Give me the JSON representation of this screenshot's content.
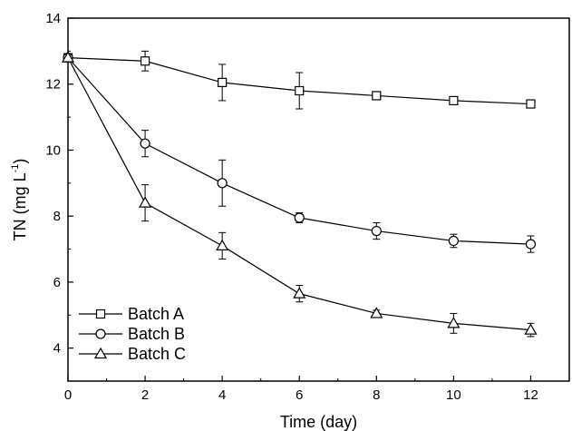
{
  "chart_data": {
    "type": "line",
    "xlabel": "Time (day)",
    "ylabel": {
      "main": "TN (mg L",
      "sup": "-1",
      "close": ")"
    },
    "xlim": [
      0,
      13
    ],
    "ylim": [
      3,
      14
    ],
    "xticks": [
      "0",
      "2",
      "4",
      "6",
      "8",
      "10",
      "12"
    ],
    "yticks": [
      "4",
      "6",
      "8",
      "10",
      "12",
      "14"
    ],
    "grid": false,
    "legend_position": "bottom-left",
    "x": [
      0,
      2,
      4,
      6,
      8,
      10,
      12
    ],
    "series": [
      {
        "name": "Batch A",
        "marker": "square",
        "values": [
          12.8,
          12.7,
          12.05,
          11.8,
          11.65,
          11.5,
          11.4
        ],
        "errors": [
          0.1,
          0.3,
          0.55,
          0.55,
          0.1,
          0.1,
          0.1
        ]
      },
      {
        "name": "Batch B",
        "marker": "circle",
        "values": [
          12.8,
          10.2,
          9.0,
          7.95,
          7.55,
          7.25,
          7.15
        ],
        "errors": [
          0.1,
          0.4,
          0.7,
          0.15,
          0.25,
          0.2,
          0.25
        ]
      },
      {
        "name": "Batch C",
        "marker": "triangle",
        "values": [
          12.8,
          8.4,
          7.1,
          5.65,
          5.05,
          4.75,
          4.55
        ],
        "errors": [
          0.1,
          0.55,
          0.4,
          0.25,
          0.1,
          0.3,
          0.2
        ]
      }
    ]
  }
}
